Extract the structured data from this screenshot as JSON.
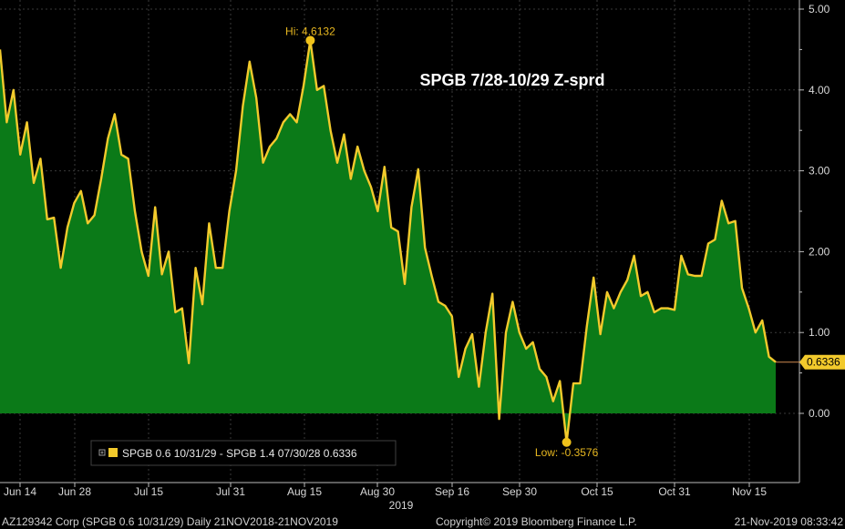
{
  "chart_data": {
    "type": "area",
    "title": "SPGB 7/28-10/29 Z-sprd",
    "x_tick_labels": [
      "Jun 14",
      "Jun 28",
      "Jul 15",
      "Jul 31",
      "Aug 15",
      "Aug 30",
      "Sep 16",
      "Sep 30",
      "Oct 15",
      "Oct 31",
      "Nov 15"
    ],
    "x_year_label": "2019",
    "y_ticks": [
      "0.00",
      "1.00",
      "2.00",
      "3.00",
      "4.00",
      "5.00"
    ],
    "ylim": [
      -0.8,
      5.1
    ],
    "grid": true,
    "legend": {
      "position": "bottom-left",
      "label": "SPGB 0.6 10/31/29 - SPGB 1.4 07/30/28 0.6336"
    },
    "series": [
      {
        "name": "SPGB 0.6 10/31/29 - SPGB 1.4 07/30/28",
        "values": [
          4.5,
          3.6,
          4.0,
          3.2,
          3.6,
          2.85,
          3.15,
          2.4,
          2.42,
          1.8,
          2.3,
          2.6,
          2.75,
          2.35,
          2.45,
          2.9,
          3.4,
          3.7,
          3.2,
          3.15,
          2.5,
          2.0,
          1.7,
          2.55,
          1.72,
          2.0,
          1.25,
          1.3,
          0.62,
          1.8,
          1.35,
          2.35,
          1.8,
          1.8,
          2.5,
          3.0,
          3.8,
          4.35,
          3.9,
          3.1,
          3.3,
          3.4,
          3.6,
          3.7,
          3.6,
          4.05,
          4.6132,
          4.0,
          4.05,
          3.5,
          3.1,
          3.45,
          2.9,
          3.3,
          3.0,
          2.8,
          2.5,
          3.05,
          2.3,
          2.25,
          1.6,
          2.55,
          3.02,
          2.05,
          1.7,
          1.38,
          1.33,
          1.2,
          0.45,
          0.8,
          0.98,
          0.33,
          1.0,
          1.48,
          -0.07,
          1.0,
          1.38,
          1.0,
          0.8,
          0.88,
          0.55,
          0.45,
          0.15,
          0.4,
          -0.3576,
          0.37,
          0.37,
          1.08,
          1.68,
          0.98,
          1.5,
          1.3,
          1.5,
          1.65,
          1.95,
          1.45,
          1.5,
          1.25,
          1.3,
          1.3,
          1.28,
          1.95,
          1.72,
          1.7,
          1.7,
          2.1,
          2.15,
          2.63,
          2.35,
          2.38,
          1.55,
          1.3,
          1.0,
          1.15,
          0.7,
          0.6336
        ]
      }
    ],
    "annotations": {
      "high": "Hi: 4.6132",
      "low": "Low: -0.3576",
      "last": "0.6336"
    },
    "colors": {
      "fill": "#0b7a18",
      "line": "#f2ca2c",
      "background": "#000000",
      "marker": "#f0c21a",
      "last_box": "#f2ca2c"
    }
  },
  "footer": {
    "left": "AZ129342 Corp (SPGB 0.6 10/31/29)  Daily 21NOV2018-21NOV2019",
    "center": "Copyright© 2019 Bloomberg Finance L.P.",
    "right": "21-Nov-2019 08:33:42"
  }
}
